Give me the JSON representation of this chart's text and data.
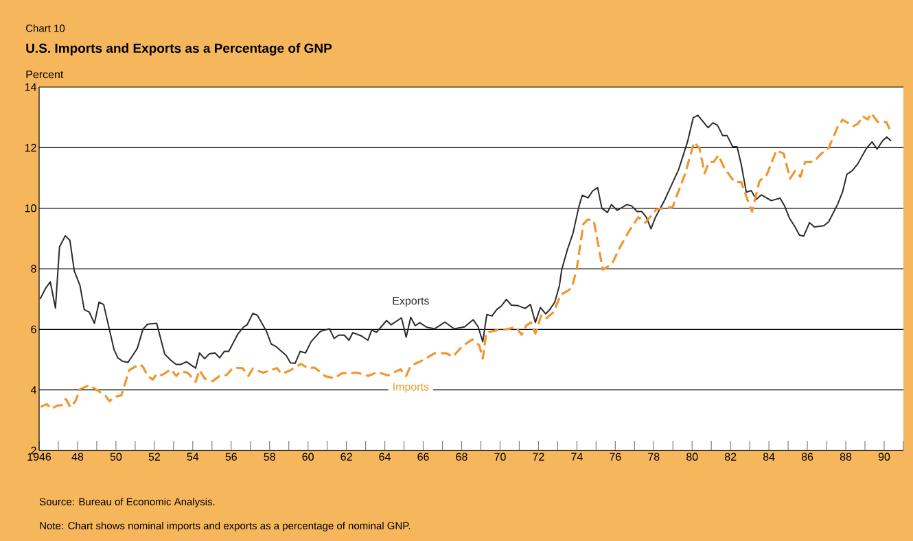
{
  "chart_data": {
    "type": "line",
    "subtitle": "Chart 10",
    "title": "U.S. Imports and Exports as a Percentage of GNP",
    "ylabel": "Percent",
    "annotations": [
      "Source:  Bureau of Economic Analysis.",
      "Note:  Chart shows nominal imports and exports as a percentage of nominal GNP."
    ],
    "xlim": [
      1946,
      1991
    ],
    "ylim": [
      2,
      14
    ],
    "yticks": [
      2,
      4,
      6,
      8,
      10,
      12,
      14
    ],
    "grid": "y",
    "xticks": [
      {
        "value": 1946,
        "label": "1946"
      },
      {
        "value": 1947,
        "label": null
      },
      {
        "value": 1948,
        "label": "48"
      },
      {
        "value": 1949,
        "label": null
      },
      {
        "value": 1950,
        "label": "50"
      },
      {
        "value": 1951,
        "label": null
      },
      {
        "value": 1952,
        "label": "52"
      },
      {
        "value": 1953,
        "label": null
      },
      {
        "value": 1954,
        "label": "54"
      },
      {
        "value": 1955,
        "label": null
      },
      {
        "value": 1956,
        "label": "56"
      },
      {
        "value": 1957,
        "label": null
      },
      {
        "value": 1958,
        "label": "58"
      },
      {
        "value": 1959,
        "label": null
      },
      {
        "value": 1960,
        "label": "60"
      },
      {
        "value": 1961,
        "label": null
      },
      {
        "value": 1962,
        "label": "62"
      },
      {
        "value": 1963,
        "label": null
      },
      {
        "value": 1964,
        "label": "64"
      },
      {
        "value": 1965,
        "label": null
      },
      {
        "value": 1966,
        "label": "66"
      },
      {
        "value": 1967,
        "label": null
      },
      {
        "value": 1968,
        "label": "68"
      },
      {
        "value": 1969,
        "label": null
      },
      {
        "value": 1970,
        "label": "70"
      },
      {
        "value": 1971,
        "label": null
      },
      {
        "value": 1972,
        "label": "72"
      },
      {
        "value": 1973,
        "label": null
      },
      {
        "value": 1974,
        "label": "74"
      },
      {
        "value": 1975,
        "label": null
      },
      {
        "value": 1976,
        "label": "76"
      },
      {
        "value": 1977,
        "label": null
      },
      {
        "value": 1978,
        "label": "78"
      },
      {
        "value": 1979,
        "label": null
      },
      {
        "value": 1980,
        "label": "80"
      },
      {
        "value": 1981,
        "label": null
      },
      {
        "value": 1982,
        "label": "82"
      },
      {
        "value": 1983,
        "label": null
      },
      {
        "value": 1984,
        "label": "84"
      },
      {
        "value": 1985,
        "label": null
      },
      {
        "value": 1986,
        "label": "86"
      },
      {
        "value": 1987,
        "label": null
      },
      {
        "value": 1988,
        "label": "88"
      },
      {
        "value": 1989,
        "label": null
      },
      {
        "value": 1990,
        "label": "90"
      },
      {
        "value": 1991,
        "label": null
      }
    ],
    "series": [
      {
        "name": "Exports",
        "color": "#2b2b2b",
        "line_style": "solid",
        "x": [
          1946.05,
          1946.35,
          1946.58,
          1946.85,
          1947.06,
          1947.36,
          1947.6,
          1947.83,
          1948.13,
          1948.35,
          1948.61,
          1948.88,
          1949.12,
          1949.36,
          1949.9,
          1950.1,
          1950.34,
          1950.63,
          1951.11,
          1951.41,
          1951.65,
          1952.12,
          1952.54,
          1952.84,
          1953.14,
          1953.37,
          1953.67,
          1954.15,
          1954.35,
          1954.62,
          1954.86,
          1955.16,
          1955.4,
          1955.64,
          1955.87,
          1956.35,
          1956.65,
          1956.83,
          1957.13,
          1957.37,
          1957.84,
          1958.08,
          1958.32,
          1958.86,
          1959.09,
          1959.33,
          1959.59,
          1959.87,
          1960.16,
          1960.64,
          1961.12,
          1961.36,
          1961.6,
          1961.89,
          1962.13,
          1962.33,
          1962.79,
          1963.12,
          1963.32,
          1963.56,
          1964.09,
          1964.33,
          1964.87,
          1965.11,
          1965.35,
          1965.58,
          1965.82,
          1966.18,
          1966.6,
          1967.13,
          1967.61,
          1968.15,
          1968.6,
          1968.86,
          1969.1,
          1969.31,
          1969.58,
          1969.82,
          1970.05,
          1970.33,
          1970.59,
          1970.95,
          1971.3,
          1971.58,
          1971.84,
          1972.1,
          1972.38,
          1972.61,
          1972.85,
          1973.09,
          1973.21,
          1973.51,
          1973.8,
          1974.1,
          1974.28,
          1974.58,
          1974.82,
          1975.08,
          1975.3,
          1975.59,
          1975.8,
          1976.1,
          1976.6,
          1976.84,
          1977.14,
          1977.38,
          1977.62,
          1977.86,
          1978.09,
          1978.57,
          1978.99,
          1979.3,
          1979.76,
          1980.06,
          1980.3,
          1980.83,
          1981.09,
          1981.32,
          1981.59,
          1981.82,
          1982.11,
          1982.34,
          1982.56,
          1982.82,
          1983.08,
          1983.34,
          1983.6,
          1984.12,
          1984.58,
          1984.81,
          1985.07,
          1985.36,
          1985.59,
          1985.81,
          1986.11,
          1986.37,
          1986.85,
          1987.11,
          1987.57,
          1987.83,
          1988.06,
          1988.32,
          1988.61,
          1989.07,
          1989.37,
          1989.63,
          1989.91,
          1990.14,
          1990.36
        ],
        "values": [
          7.0,
          7.37,
          7.57,
          6.7,
          8.72,
          9.09,
          8.94,
          7.93,
          7.44,
          6.65,
          6.57,
          6.2,
          6.9,
          6.82,
          5.33,
          5.06,
          4.95,
          4.91,
          5.37,
          6.01,
          6.17,
          6.2,
          5.18,
          4.99,
          4.84,
          4.84,
          4.93,
          4.72,
          5.22,
          5.03,
          5.19,
          5.22,
          5.06,
          5.27,
          5.27,
          5.85,
          6.08,
          6.15,
          6.53,
          6.46,
          5.93,
          5.52,
          5.44,
          5.14,
          4.89,
          4.88,
          5.27,
          5.22,
          5.59,
          5.93,
          6.02,
          5.7,
          5.81,
          5.81,
          5.64,
          5.89,
          5.78,
          5.64,
          5.98,
          5.9,
          6.29,
          6.15,
          6.38,
          5.74,
          6.4,
          6.12,
          6.22,
          6.07,
          6.02,
          6.24,
          6.02,
          6.08,
          6.32,
          6.08,
          5.59,
          6.49,
          6.44,
          6.65,
          6.76,
          6.99,
          6.8,
          6.78,
          6.69,
          6.82,
          6.23,
          6.72,
          6.51,
          6.67,
          6.9,
          7.44,
          7.97,
          8.64,
          9.18,
          10.04,
          10.43,
          10.34,
          10.57,
          10.68,
          10.0,
          9.86,
          10.12,
          9.93,
          10.12,
          10.08,
          9.89,
          9.89,
          9.7,
          9.32,
          9.7,
          10.27,
          10.85,
          11.28,
          12.19,
          12.99,
          13.07,
          12.66,
          12.82,
          12.74,
          12.4,
          12.4,
          12.03,
          12.03,
          11.44,
          10.53,
          10.58,
          10.29,
          10.44,
          10.25,
          10.33,
          10.08,
          9.67,
          9.38,
          9.11,
          9.08,
          9.52,
          9.38,
          9.42,
          9.55,
          10.12,
          10.53,
          11.12,
          11.23,
          11.45,
          11.97,
          12.19,
          11.95,
          12.22,
          12.35,
          12.22
        ]
      },
      {
        "name": "Imports",
        "color": "#f0962e",
        "line_style": "dashed",
        "x": [
          1946.08,
          1946.4,
          1946.64,
          1946.94,
          1947.18,
          1947.39,
          1947.63,
          1947.89,
          1948.13,
          1948.63,
          1948.97,
          1949.44,
          1949.66,
          1949.98,
          1950.28,
          1950.69,
          1951.23,
          1951.41,
          1951.65,
          1951.92,
          1952.12,
          1952.4,
          1952.87,
          1953.14,
          1953.35,
          1953.73,
          1954.15,
          1954.35,
          1954.62,
          1955.04,
          1955.4,
          1955.76,
          1956.11,
          1956.59,
          1956.89,
          1957.13,
          1957.66,
          1958.08,
          1958.38,
          1958.62,
          1959.09,
          1959.63,
          1959.98,
          1960.34,
          1960.88,
          1961.36,
          1961.77,
          1962.55,
          1963.14,
          1963.62,
          1964.16,
          1964.81,
          1965.11,
          1965.35,
          1965.88,
          1966.6,
          1967.19,
          1967.55,
          1968.03,
          1968.56,
          1968.92,
          1969.1,
          1969.28,
          1969.81,
          1970.41,
          1970.83,
          1971.12,
          1971.36,
          1971.6,
          1971.84,
          1972.14,
          1972.38,
          1972.79,
          1973.15,
          1973.57,
          1973.74,
          1973.98,
          1974.34,
          1974.58,
          1974.88,
          1975.35,
          1975.83,
          1976.25,
          1976.72,
          1977.2,
          1977.56,
          1978.15,
          1978.99,
          1979.23,
          1979.64,
          1980.1,
          1980.39,
          1980.65,
          1980.87,
          1981.13,
          1981.37,
          1981.66,
          1982.21,
          1982.56,
          1982.86,
          1983.12,
          1983.51,
          1983.86,
          1984.39,
          1984.77,
          1985.1,
          1985.36,
          1985.64,
          1985.88,
          1986.33,
          1986.72,
          1987.11,
          1987.57,
          1987.83,
          1988.41,
          1988.64,
          1988.88,
          1989.14,
          1989.33,
          1989.66,
          1990.11,
          1990.36
        ],
        "values": [
          3.44,
          3.53,
          3.38,
          3.48,
          3.5,
          3.7,
          3.43,
          3.63,
          4.02,
          4.16,
          4.01,
          3.82,
          3.63,
          3.78,
          3.82,
          4.65,
          4.85,
          4.76,
          4.46,
          4.34,
          4.53,
          4.49,
          4.68,
          4.46,
          4.61,
          4.57,
          4.27,
          4.65,
          4.38,
          4.29,
          4.46,
          4.49,
          4.74,
          4.72,
          4.46,
          4.7,
          4.57,
          4.65,
          4.72,
          4.53,
          4.65,
          4.86,
          4.72,
          4.74,
          4.46,
          4.38,
          4.55,
          4.57,
          4.46,
          4.59,
          4.48,
          4.68,
          4.46,
          4.8,
          4.95,
          5.21,
          5.21,
          5.1,
          5.44,
          5.67,
          5.47,
          5.03,
          5.89,
          5.97,
          6.01,
          6.08,
          5.82,
          6.12,
          6.23,
          5.86,
          6.46,
          6.35,
          6.57,
          7.14,
          7.29,
          7.4,
          7.95,
          9.48,
          9.63,
          9.59,
          7.97,
          8.16,
          8.72,
          9.25,
          9.7,
          9.52,
          9.97,
          10.04,
          10.46,
          11.14,
          12.18,
          11.97,
          11.15,
          11.52,
          11.53,
          11.75,
          11.35,
          10.86,
          10.86,
          10.32,
          9.89,
          10.9,
          11.06,
          11.91,
          11.8,
          10.98,
          11.23,
          11.04,
          11.52,
          11.53,
          11.8,
          11.99,
          12.67,
          12.92,
          12.71,
          12.79,
          13.04,
          12.93,
          13.14,
          12.85,
          12.85,
          12.51
        ]
      }
    ]
  }
}
